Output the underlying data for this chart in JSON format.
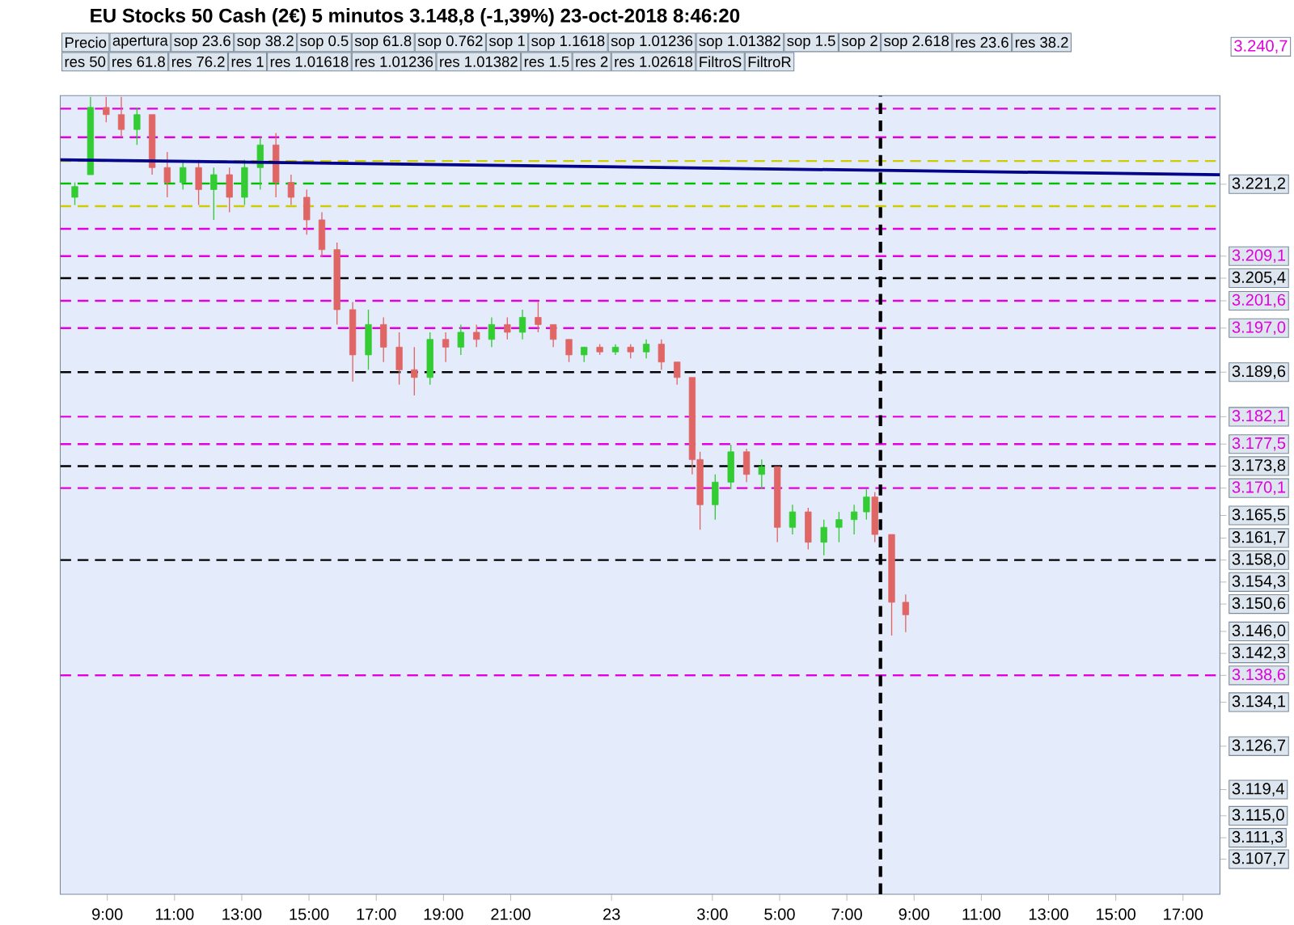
{
  "chart_data": {
    "type": "candlestick",
    "title": "EU Stocks 50 Cash (2€)   5 minutos   3.148,8 (-1,39%)   23-oct-2018 8:46:20",
    "x": [
      "2018-10-22T08:02",
      "2018-10-22T08:30",
      "2018-10-22T08:58",
      "2018-10-22T09:25",
      "2018-10-22T09:53",
      "2018-10-22T10:20",
      "2018-10-22T10:47",
      "2018-10-22T11:15",
      "2018-10-22T11:43",
      "2018-10-22T12:10",
      "2018-10-22T12:38",
      "2018-10-22T13:05",
      "2018-10-22T13:33",
      "2018-10-22T14:01",
      "2018-10-22T14:28",
      "2018-10-22T14:56",
      "2018-10-22T15:23",
      "2018-10-22T15:50",
      "2018-10-22T16:18",
      "2018-10-22T16:46",
      "2018-10-22T17:13",
      "2018-10-22T17:41",
      "2018-10-22T18:08",
      "2018-10-22T18:36",
      "2018-10-22T19:04",
      "2018-10-22T19:31",
      "2018-10-22T19:59",
      "2018-10-22T20:26",
      "2018-10-22T20:54",
      "2018-10-22T21:21",
      "2018-10-22T21:49",
      "2018-10-22T22:16",
      "2018-10-22T22:44",
      "2018-10-22T23:11",
      "2018-10-22T23:39",
      "2018-10-23T00:07",
      "2018-10-23T00:34",
      "2018-10-23T01:02",
      "2018-10-23T01:29",
      "2018-10-23T01:57",
      "2018-10-23T02:24",
      "2018-10-23T02:38",
      "2018-10-23T03:05",
      "2018-10-23T03:33",
      "2018-10-23T04:01",
      "2018-10-23T04:28",
      "2018-10-23T04:56",
      "2018-10-23T05:23",
      "2018-10-23T05:51",
      "2018-10-23T06:19",
      "2018-10-23T06:46",
      "2018-10-23T07:13",
      "2018-10-23T07:35",
      "2018-10-23T07:50",
      "2018-10-23T08:20",
      "2018-10-23T08:45"
    ],
    "ohlc": [
      [
        3219.0,
        3221.5,
        3217.7,
        3220.8
      ],
      [
        3222.8,
        3235.9,
        3222.8,
        3234.1
      ],
      [
        3234.1,
        3235.9,
        3231.6,
        3232.9
      ],
      [
        3232.9,
        3235.9,
        3229.1,
        3230.4
      ],
      [
        3230.4,
        3234.1,
        3227.8,
        3232.9
      ],
      [
        3232.9,
        3232.9,
        3222.8,
        3224.0
      ],
      [
        3224.0,
        3226.6,
        3219.0,
        3221.5
      ],
      [
        3221.5,
        3225.3,
        3220.3,
        3224.0
      ],
      [
        3224.0,
        3225.3,
        3217.7,
        3220.3
      ],
      [
        3220.3,
        3224.0,
        3215.2,
        3222.8
      ],
      [
        3222.8,
        3224.0,
        3216.5,
        3219.0
      ],
      [
        3219.0,
        3225.3,
        3217.7,
        3224.0
      ],
      [
        3224.0,
        3229.1,
        3220.3,
        3227.8
      ],
      [
        3227.8,
        3229.8,
        3219.0,
        3221.5
      ],
      [
        3221.5,
        3222.8,
        3217.7,
        3219.0
      ],
      [
        3219.0,
        3220.3,
        3212.7,
        3215.2
      ],
      [
        3215.2,
        3216.5,
        3208.9,
        3210.2
      ],
      [
        3210.2,
        3211.4,
        3197.6,
        3200.1
      ],
      [
        3200.1,
        3201.4,
        3188.0,
        3192.5
      ],
      [
        3192.5,
        3200.1,
        3190.0,
        3197.6
      ],
      [
        3197.6,
        3198.8,
        3191.3,
        3193.8
      ],
      [
        3193.8,
        3196.3,
        3187.5,
        3190.0
      ],
      [
        3190.0,
        3193.8,
        3185.7,
        3188.7
      ],
      [
        3188.7,
        3196.3,
        3187.5,
        3195.1
      ],
      [
        3195.1,
        3196.3,
        3191.3,
        3193.8
      ],
      [
        3193.8,
        3197.6,
        3192.5,
        3196.3
      ],
      [
        3196.3,
        3197.6,
        3193.8,
        3195.1
      ],
      [
        3195.1,
        3198.8,
        3193.8,
        3197.6
      ],
      [
        3197.6,
        3198.8,
        3195.1,
        3196.3
      ],
      [
        3196.3,
        3200.1,
        3195.1,
        3198.8
      ],
      [
        3198.8,
        3201.4,
        3196.3,
        3197.6
      ],
      [
        3197.6,
        3197.6,
        3193.8,
        3195.1
      ],
      [
        3195.1,
        3195.1,
        3191.3,
        3192.5
      ],
      [
        3192.5,
        3193.8,
        3191.3,
        3193.8
      ],
      [
        3193.8,
        3194.3,
        3192.5,
        3193.0
      ],
      [
        3193.0,
        3194.3,
        3192.5,
        3193.8
      ],
      [
        3193.8,
        3194.3,
        3191.9,
        3193.0
      ],
      [
        3193.0,
        3195.1,
        3191.9,
        3194.3
      ],
      [
        3194.3,
        3195.1,
        3190.0,
        3191.3
      ],
      [
        3191.3,
        3191.3,
        3187.5,
        3188.7
      ],
      [
        3188.7,
        3188.7,
        3172.4,
        3174.9
      ],
      [
        3174.9,
        3176.2,
        3163.1,
        3167.3
      ],
      [
        3167.3,
        3172.4,
        3164.8,
        3171.1
      ],
      [
        3171.1,
        3177.4,
        3169.9,
        3176.2
      ],
      [
        3176.2,
        3176.7,
        3171.1,
        3172.4
      ],
      [
        3172.4,
        3174.9,
        3169.9,
        3173.7
      ],
      [
        3173.7,
        3173.7,
        3161.0,
        3163.5
      ],
      [
        3163.5,
        3167.3,
        3162.3,
        3166.1
      ],
      [
        3166.1,
        3166.8,
        3159.8,
        3161.0
      ],
      [
        3161.0,
        3164.8,
        3158.8,
        3163.5
      ],
      [
        3163.5,
        3166.1,
        3161.0,
        3164.8
      ],
      [
        3164.8,
        3167.3,
        3162.3,
        3166.1
      ],
      [
        3166.1,
        3169.9,
        3164.8,
        3168.6
      ],
      [
        3168.6,
        3169.4,
        3161.0,
        3162.3
      ],
      [
        3162.3,
        3162.3,
        3145.3,
        3150.9
      ],
      [
        3150.9,
        3152.2,
        3145.9,
        3148.8
      ]
    ],
    "xlim": [
      "2018-10-22T07:36",
      "2018-10-23T18:06"
    ],
    "ylim": [
      3101.8,
      3236.1
    ],
    "xticks": [
      {
        "value": "2018-10-22T09:00",
        "label": "9:00"
      },
      {
        "value": "2018-10-22T11:00",
        "label": "11:00"
      },
      {
        "value": "2018-10-22T13:00",
        "label": "13:00"
      },
      {
        "value": "2018-10-22T15:00",
        "label": "15:00"
      },
      {
        "value": "2018-10-22T17:00",
        "label": "17:00"
      },
      {
        "value": "2018-10-22T19:00",
        "label": "19:00"
      },
      {
        "value": "2018-10-22T21:00",
        "label": "21:00"
      },
      {
        "value": "2018-10-23T00:00",
        "label": "23"
      },
      {
        "value": "2018-10-23T03:00",
        "label": "3:00"
      },
      {
        "value": "2018-10-23T05:00",
        "label": "5:00"
      },
      {
        "value": "2018-10-23T07:00",
        "label": "7:00"
      },
      {
        "value": "2018-10-23T09:00",
        "label": "9:00"
      },
      {
        "value": "2018-10-23T11:00",
        "label": "11:00"
      },
      {
        "value": "2018-10-23T13:00",
        "label": "13:00"
      },
      {
        "value": "2018-10-23T15:00",
        "label": "15:00"
      },
      {
        "value": "2018-10-23T17:00",
        "label": "17:00"
      }
    ],
    "yticks": [
      {
        "value": 3221.2,
        "label": "3.221,2"
      },
      {
        "value": 3209.1,
        "label": "3.209,1"
      },
      {
        "value": 3205.4,
        "label": "3.205,4"
      },
      {
        "value": 3201.6,
        "label": "3.201,6"
      },
      {
        "value": 3197.0,
        "label": "3.197,0"
      },
      {
        "value": 3189.6,
        "label": "3.189,6"
      },
      {
        "value": 3182.1,
        "label": "3.182,1"
      },
      {
        "value": 3177.5,
        "label": "3.177,5"
      },
      {
        "value": 3173.8,
        "label": "3.173,8"
      },
      {
        "value": 3170.1,
        "label": "3.170,1"
      },
      {
        "value": 3165.5,
        "label": "3.165,5"
      },
      {
        "value": 3161.7,
        "label": "3.161,7"
      },
      {
        "value": 3158.0,
        "label": "3.158,0"
      },
      {
        "value": 3154.3,
        "label": "3.154,3"
      },
      {
        "value": 3150.6,
        "label": "3.150,6"
      },
      {
        "value": 3146.0,
        "label": "3.146,0"
      },
      {
        "value": 3142.3,
        "label": "3.142,3"
      },
      {
        "value": 3138.6,
        "label": "3.138,6"
      },
      {
        "value": 3134.1,
        "label": "3.134,1"
      },
      {
        "value": 3126.7,
        "label": "3.126,7"
      },
      {
        "value": 3119.4,
        "label": "3.119,4"
      },
      {
        "value": 3115.0,
        "label": "3.115,0"
      },
      {
        "value": 3111.3,
        "label": "3.111,3"
      },
      {
        "value": 3107.7,
        "label": "3.107,7"
      }
    ],
    "series": [
      {
        "type": "line",
        "x": [
          "2018-10-22T07:36",
          "2018-10-23T18:06"
        ],
        "values": [
          3225.3,
          3222.8
        ],
        "color": "#00008b"
      }
    ],
    "ref_lines": [
      {
        "axis": "y",
        "value": 3233.9,
        "color": "#e000e0",
        "line_style": "dashed"
      },
      {
        "axis": "y",
        "value": 3229.1,
        "color": "#e000e0",
        "line_style": "dashed"
      },
      {
        "axis": "y",
        "value": 3225.1,
        "color": "#cccc00",
        "line_style": "dashed"
      },
      {
        "axis": "y",
        "value": 3221.3,
        "color": "#00c000",
        "line_style": "dashed"
      },
      {
        "axis": "y",
        "value": 3217.5,
        "color": "#cccc00",
        "line_style": "dashed"
      },
      {
        "axis": "y",
        "value": 3213.7,
        "color": "#e000e0",
        "line_style": "dashed"
      },
      {
        "axis": "y",
        "value": 3209.1,
        "color": "#e000e0",
        "line_style": "dashed"
      },
      {
        "axis": "y",
        "value": 3205.4,
        "color": "#000000",
        "line_style": "dashed"
      },
      {
        "axis": "y",
        "value": 3201.6,
        "color": "#e000e0",
        "line_style": "dashed"
      },
      {
        "axis": "y",
        "value": 3197.0,
        "color": "#e000e0",
        "line_style": "dashed"
      },
      {
        "axis": "y",
        "value": 3189.6,
        "color": "#000000",
        "line_style": "dashed"
      },
      {
        "axis": "y",
        "value": 3182.1,
        "color": "#e000e0",
        "line_style": "dashed"
      },
      {
        "axis": "y",
        "value": 3177.5,
        "color": "#e000e0",
        "line_style": "dashed"
      },
      {
        "axis": "y",
        "value": 3173.8,
        "color": "#000000",
        "line_style": "dashed"
      },
      {
        "axis": "y",
        "value": 3170.1,
        "color": "#e000e0",
        "line_style": "dashed"
      },
      {
        "axis": "y",
        "value": 3158.0,
        "color": "#000000",
        "line_style": "dashed"
      },
      {
        "axis": "y",
        "value": 3138.6,
        "color": "#e000e0",
        "line_style": "dashed"
      },
      {
        "axis": "x",
        "value": "2018-10-23T08:00",
        "color": "#000000",
        "line_style": "dashed"
      }
    ],
    "annotations": [
      "Precio",
      "apertura",
      "sop 23.6",
      "sop 38.2",
      "sop 0.5",
      "sop 61.8",
      "sop 0.762",
      "sop 1",
      "sop 1.1618",
      "sop 1.01236",
      "sop 1.01382",
      "sop 1.5",
      "sop 2",
      "sop 2.618",
      "res 23.6",
      "res 38.2",
      "res 50",
      "res 61.8",
      "res 76.2",
      "res 1",
      "res 1.01618",
      "res 1.01236",
      "res 1.01382",
      "res 1.5",
      "res 2",
      "res 1.02618",
      "FiltroS",
      "FiltroR",
      "3.240,7"
    ]
  }
}
